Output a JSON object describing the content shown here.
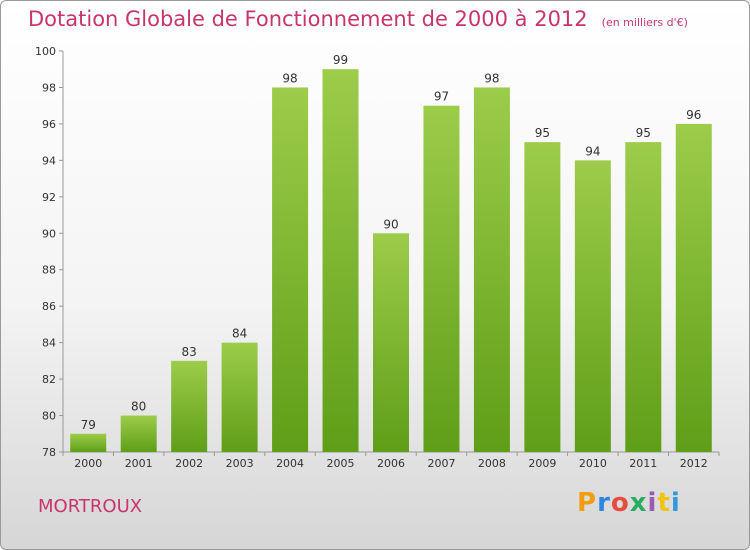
{
  "header": {
    "title": "Dotation Globale de Fonctionnement de 2000 à 2012",
    "subtitle": "(en milliers d'€)"
  },
  "commune": "MORTROUX",
  "logo": {
    "letters": [
      "P",
      "r",
      "o",
      "x",
      "i",
      "t",
      "i"
    ],
    "colors": [
      "#f39c12",
      "#2e86de",
      "#e74c3c",
      "#27ae60",
      "#9b59b6",
      "#f1c40f",
      "#3498db"
    ]
  },
  "colors": {
    "bar_top": "#9ccc4a",
    "bar_bottom": "#5f9e18",
    "accent": "#c8356e"
  },
  "chart_data": {
    "type": "bar",
    "categories": [
      "2000",
      "2001",
      "2002",
      "2003",
      "2004",
      "2005",
      "2006",
      "2007",
      "2008",
      "2009",
      "2010",
      "2011",
      "2012"
    ],
    "values": [
      79,
      80,
      83,
      84,
      98,
      99,
      90,
      97,
      98,
      95,
      94,
      95,
      96
    ],
    "title": "Dotation Globale de Fonctionnement de 2000 à 2012",
    "subtitle": "(en milliers d'€)",
    "xlabel": "",
    "ylabel": "",
    "ylim": [
      78,
      100
    ],
    "yticks": [
      78,
      80,
      82,
      84,
      86,
      88,
      90,
      92,
      94,
      96,
      98,
      100
    ],
    "grid": false,
    "data_labels": true
  }
}
